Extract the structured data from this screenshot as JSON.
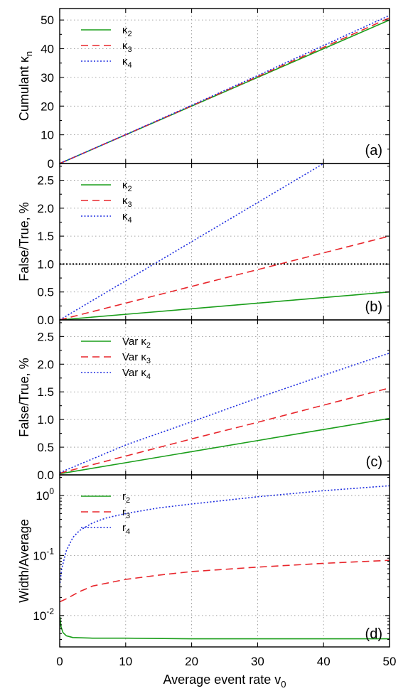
{
  "x_axis": {
    "label": "Average event rate",
    "label_symbol": "v",
    "label_sub": "0",
    "range": [
      0,
      50
    ],
    "ticks": [
      0,
      10,
      20,
      30,
      40,
      50
    ],
    "tick_labels": [
      "0",
      "10",
      "20",
      "30",
      "40",
      "50"
    ]
  },
  "colors": {
    "series2": "#1a9e1a",
    "series3": "#e8262c",
    "series4": "#1f2ee0",
    "reference": "#000000"
  },
  "chart_data": [
    {
      "type": "line",
      "panel_label": "(a)",
      "ylabel": "Cumulant κ",
      "ylabel_sub": "n",
      "ylim": [
        0,
        54
      ],
      "yscale": "linear",
      "yticks": [
        0,
        10,
        20,
        30,
        40,
        50
      ],
      "ytick_labels": [
        "0",
        "10",
        "20",
        "30",
        "40",
        "50"
      ],
      "grid": true,
      "legend_placement": "top-left",
      "series": [
        {
          "name": "κ",
          "name_sub": "2",
          "style": "solid",
          "color": "#1a9e1a",
          "x": [
            0,
            10,
            20,
            30,
            40,
            50
          ],
          "y": [
            0,
            10,
            20,
            30,
            40,
            50
          ]
        },
        {
          "name": "κ",
          "name_sub": "3",
          "style": "dashed",
          "color": "#e8262c",
          "x": [
            0,
            10,
            20,
            30,
            40,
            50
          ],
          "y": [
            0,
            10.03,
            20.12,
            30.27,
            40.48,
            50.75
          ]
        },
        {
          "name": "κ",
          "name_sub": "4",
          "style": "dotted",
          "color": "#1f2ee0",
          "x": [
            0,
            10,
            20,
            30,
            40,
            50
          ],
          "y": [
            0,
            10.07,
            20.28,
            30.63,
            41.12,
            51.6
          ]
        }
      ]
    },
    {
      "type": "line",
      "panel_label": "(b)",
      "ylabel": "False/True, %",
      "ylim": [
        0,
        2.8
      ],
      "yscale": "linear",
      "yticks": [
        0,
        0.5,
        1.0,
        1.5,
        2.0,
        2.5
      ],
      "ytick_labels": [
        "0.0",
        "0.5",
        "1.0",
        "1.5",
        "2.0",
        "2.5"
      ],
      "grid": true,
      "legend_placement": "top-left",
      "reference_line": {
        "y": 1.0,
        "style": "dotted",
        "color": "#000000"
      },
      "series": [
        {
          "name": "κ",
          "name_sub": "2",
          "style": "solid",
          "color": "#1a9e1a",
          "x": [
            0,
            10,
            20,
            30,
            40,
            50
          ],
          "y": [
            0,
            0.1,
            0.2,
            0.3,
            0.4,
            0.5
          ]
        },
        {
          "name": "κ",
          "name_sub": "3",
          "style": "dashed",
          "color": "#e8262c",
          "x": [
            0,
            10,
            20,
            30,
            40,
            50
          ],
          "y": [
            0,
            0.3,
            0.6,
            0.9,
            1.2,
            1.5
          ]
        },
        {
          "name": "κ",
          "name_sub": "4",
          "style": "dotted",
          "color": "#1f2ee0",
          "x": [
            0,
            10,
            20,
            30,
            40
          ],
          "y": [
            0,
            0.7,
            1.4,
            2.1,
            2.8
          ]
        }
      ]
    },
    {
      "type": "line",
      "panel_label": "(c)",
      "ylabel": "False/True, %",
      "ylim": [
        0,
        2.8
      ],
      "yscale": "linear",
      "yticks": [
        0,
        0.5,
        1.0,
        1.5,
        2.0,
        2.5
      ],
      "ytick_labels": [
        "0.0",
        "0.5",
        "1.0",
        "1.5",
        "2.0",
        "2.5"
      ],
      "grid": true,
      "legend_placement": "top-left",
      "series": [
        {
          "name": "Var κ",
          "name_sub": "2",
          "style": "solid",
          "color": "#1a9e1a",
          "x": [
            0,
            10,
            20,
            30,
            40,
            50
          ],
          "y": [
            0.02,
            0.22,
            0.42,
            0.62,
            0.82,
            1.02
          ]
        },
        {
          "name": "Var κ",
          "name_sub": "3",
          "style": "dashed",
          "color": "#e8262c",
          "x": [
            0,
            10,
            20,
            30,
            40,
            50
          ],
          "y": [
            0.03,
            0.34,
            0.65,
            0.95,
            1.26,
            1.57
          ]
        },
        {
          "name": "Var κ",
          "name_sub": "4",
          "style": "dotted",
          "color": "#1f2ee0",
          "x": [
            0,
            10,
            20,
            30,
            40,
            50
          ],
          "y": [
            0.04,
            0.54,
            0.96,
            1.39,
            1.8,
            2.2
          ]
        }
      ]
    },
    {
      "type": "line",
      "panel_label": "(d)",
      "ylabel": "Width/Average",
      "ylim": [
        0.003,
        2.2
      ],
      "yscale": "log",
      "yticks": [
        0.01,
        0.1,
        1
      ],
      "ytick_labels": [
        {
          "base": "10",
          "exp": "-2"
        },
        {
          "base": "10",
          "exp": "-1"
        },
        {
          "base": "10",
          "exp": "0"
        }
      ],
      "grid": true,
      "legend_placement": "top-left",
      "series": [
        {
          "name": "r",
          "name_sub": "2",
          "style": "solid",
          "color": "#1a9e1a",
          "x": [
            0.05,
            0.2,
            0.5,
            1,
            2,
            5,
            10,
            20,
            30,
            40,
            50
          ],
          "y": [
            0.0095,
            0.0065,
            0.0052,
            0.0046,
            0.0043,
            0.0042,
            0.0042,
            0.0041,
            0.0041,
            0.0041,
            0.0041
          ]
        },
        {
          "name": "r",
          "name_sub": "3",
          "style": "dashed",
          "color": "#e8262c",
          "x": [
            0.05,
            1,
            3,
            5,
            10,
            15,
            20,
            30,
            40,
            50
          ],
          "y": [
            0.017,
            0.019,
            0.025,
            0.031,
            0.04,
            0.047,
            0.054,
            0.064,
            0.074,
            0.083
          ]
        },
        {
          "name": "r",
          "name_sub": "4",
          "style": "dotted",
          "color": "#1f2ee0",
          "x": [
            0.05,
            0.3,
            1,
            2,
            3,
            5,
            7,
            10,
            15,
            20,
            30,
            40,
            50
          ],
          "y": [
            0.035,
            0.06,
            0.12,
            0.2,
            0.26,
            0.35,
            0.42,
            0.5,
            0.62,
            0.72,
            0.95,
            1.2,
            1.45
          ]
        }
      ]
    }
  ]
}
